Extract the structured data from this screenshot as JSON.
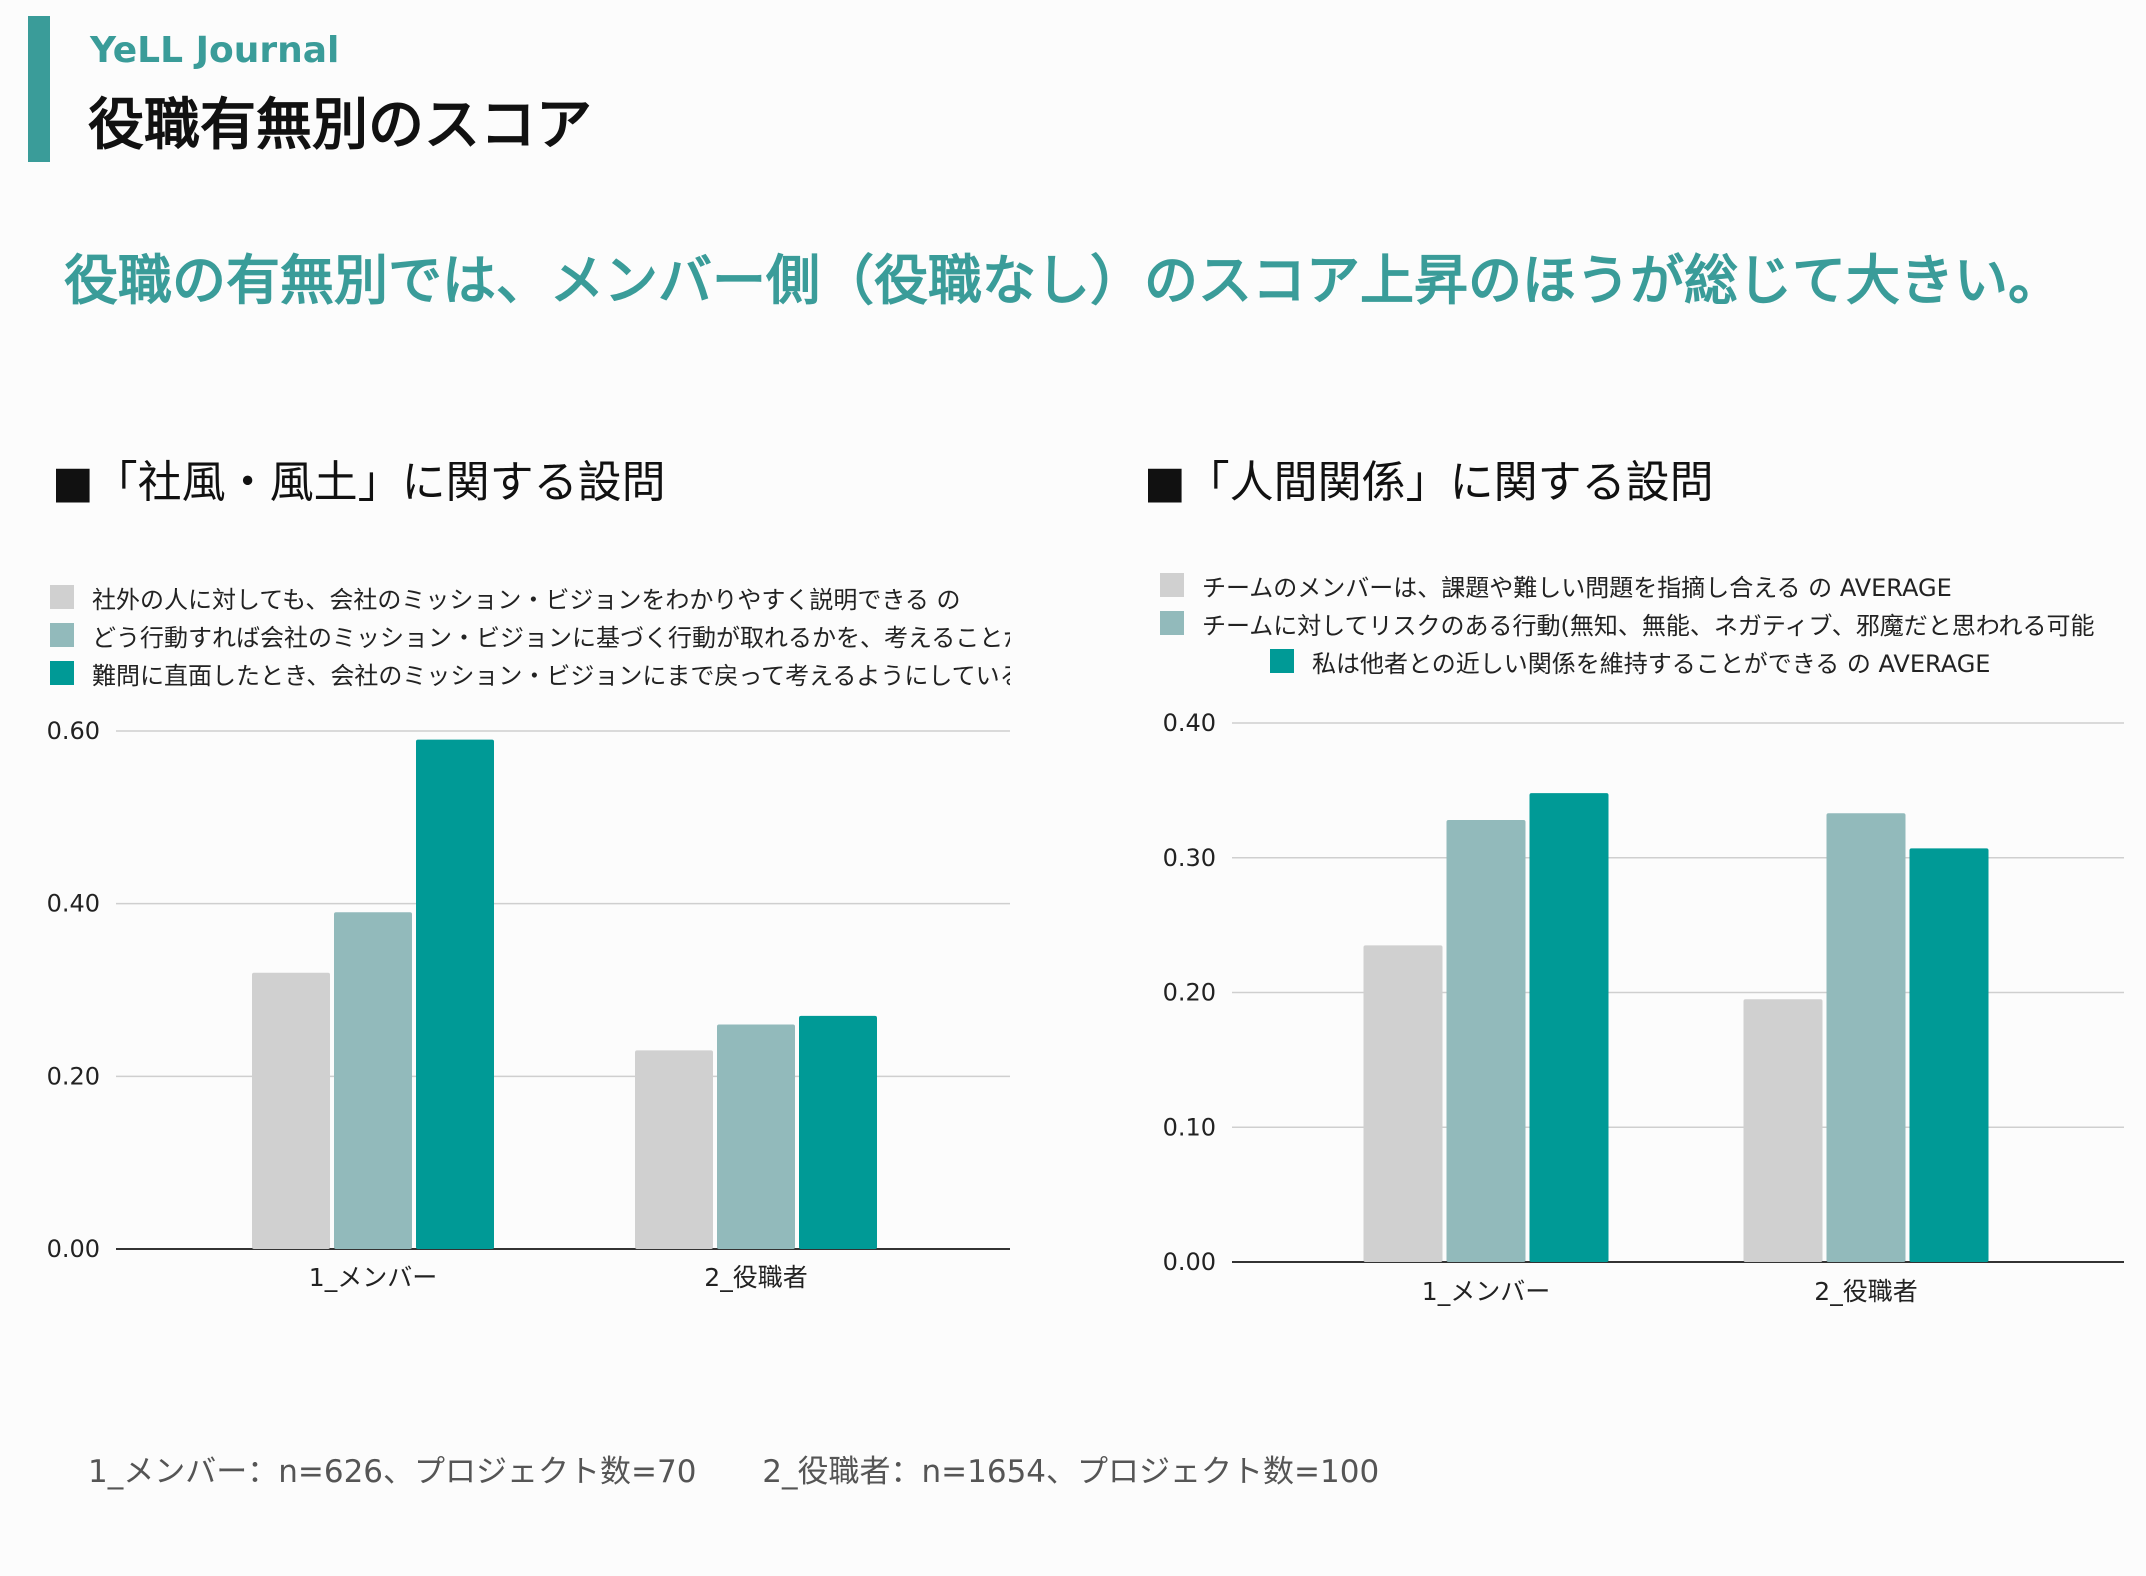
{
  "header": {
    "brand": "YeLL Journal",
    "title": "役職有無別のスコア",
    "headline": "役職の有無別では、メンバー側（役職なし）のスコア上昇のほうが総じて大きい。"
  },
  "colors": {
    "accent": "#3a9c99",
    "series": [
      "#d0d0d0",
      "#92babb",
      "#009a96"
    ]
  },
  "sections": {
    "left_title": "■「社風・風土」に関する設問",
    "right_title": "■「人間関係」に関する設問"
  },
  "chart_data": [
    {
      "type": "bar",
      "categories": [
        "1_メンバー",
        "2_役職者"
      ],
      "series": [
        {
          "name": "社外の人に対しても、会社のミッション・ビジョンをわかりやすく説明できる の",
          "values": [
            0.32,
            0.23
          ]
        },
        {
          "name": "どう行動すれば会社のミッション・ビジョンに基づく行動が取れるかを、考えることがあ",
          "values": [
            0.39,
            0.26
          ]
        },
        {
          "name": "難問に直面したとき、会社のミッション・ビジョンにまで戻って考えるようにしている の",
          "values": [
            0.59,
            0.27
          ]
        }
      ],
      "yticks": [
        "0.00",
        "0.20",
        "0.40",
        "0.60"
      ],
      "ylim": [
        0,
        0.6
      ],
      "grid": true
    },
    {
      "type": "bar",
      "categories": [
        "1_メンバー",
        "2_役職者"
      ],
      "series": [
        {
          "name": "チームのメンバーは、課題や難しい問題を指摘し合える の AVERAGE",
          "values": [
            0.235,
            0.195
          ]
        },
        {
          "name": "チームに対してリスクのある行動(無知、無能、ネガティブ、邪魔だと思われる可能",
          "values": [
            0.328,
            0.333
          ]
        },
        {
          "name": "私は他者との近しい関係を維持することができる の AVERAGE",
          "values": [
            0.348,
            0.307
          ]
        }
      ],
      "yticks": [
        "0.00",
        "0.10",
        "0.20",
        "0.30",
        "0.40"
      ],
      "ylim": [
        0,
        0.4
      ],
      "grid": true
    }
  ],
  "footnote": {
    "member": "1_メンバー：n=626、プロジェクト数=70",
    "manager": "2_役職者：n=1654、プロジェクト数=100"
  }
}
